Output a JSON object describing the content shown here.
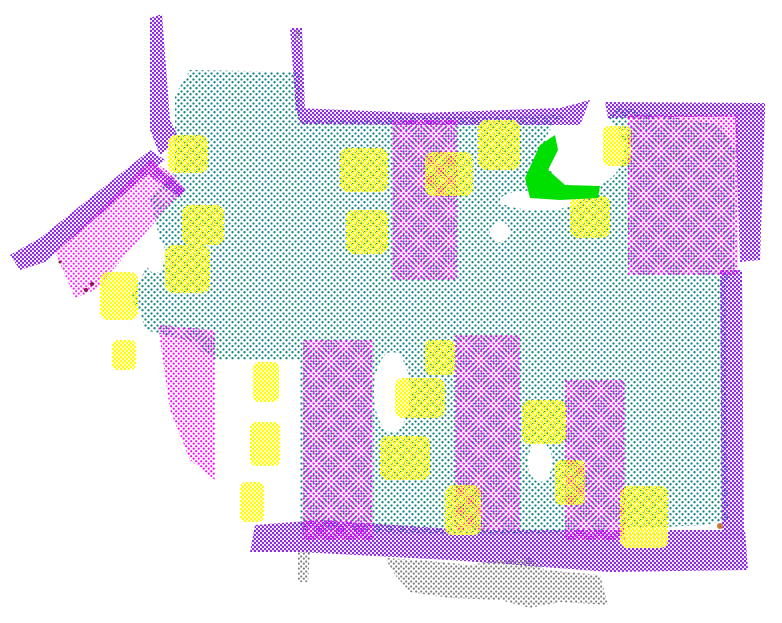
{
  "scene": {
    "type": "semantic point cloud, top-down view",
    "colors": {
      "floor": "#0f8383",
      "wall": "#8a2be2",
      "table": "#ff00ff",
      "chair": "#ffff00",
      "plant": "#00e000",
      "clutter": "#808080",
      "dark_detail": "#8b1a4a",
      "background": "#ffffff"
    }
  }
}
